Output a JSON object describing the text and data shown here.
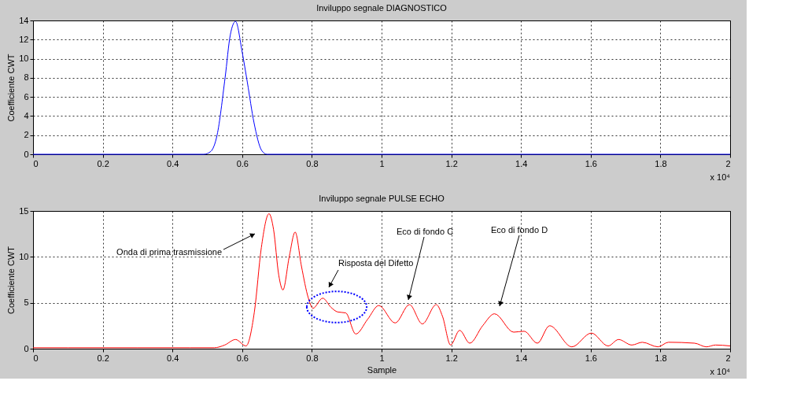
{
  "chart_data": [
    {
      "type": "line",
      "title": "Inviluppo segnale DIAGNOSTICO",
      "ylabel": "Coefficiente CWT",
      "xlim": [
        0,
        2
      ],
      "xticks": [
        0,
        0.2,
        0.4,
        0.6,
        0.8,
        1,
        1.2,
        1.4,
        1.6,
        1.8,
        2
      ],
      "ylim": [
        0,
        14
      ],
      "yticks": [
        0,
        2,
        4,
        6,
        8,
        10,
        12,
        14
      ],
      "grid": true,
      "series": [
        {
          "color": "#0000ff",
          "x": [
            0,
            0.49,
            0.51,
            0.528,
            0.551,
            0.566,
            0.581,
            0.6,
            0.615,
            0.634,
            0.656,
            0.671,
            2
          ],
          "values": [
            0,
            0,
            0.3,
            2,
            8.0,
            12.5,
            13.9,
            10.7,
            7.5,
            3.3,
            0.4,
            0,
            0
          ]
        }
      ],
      "annotations": [
        "x 10⁴"
      ]
    },
    {
      "type": "line",
      "title": "Inviluppo segnale PULSE ECHO",
      "xlabel": "Sample",
      "ylabel": "Coefficiente CWT",
      "xlim": [
        0,
        2
      ],
      "xticks": [
        0,
        0.2,
        0.4,
        0.6,
        0.8,
        1,
        1.2,
        1.4,
        1.6,
        1.8,
        2
      ],
      "ylim": [
        0,
        15
      ],
      "yticks": [
        0,
        5,
        10,
        15
      ],
      "grid": true,
      "series": [
        {
          "color": "#ff0000",
          "x": [
            0,
            0.1,
            0.3,
            0.45,
            0.52,
            0.55,
            0.581,
            0.611,
            0.635,
            0.655,
            0.677,
            0.69,
            0.705,
            0.717,
            0.735,
            0.752,
            0.77,
            0.79,
            0.803,
            0.831,
            0.855,
            0.874,
            0.897,
            0.926,
            0.96,
            0.992,
            1.039,
            1.08,
            1.117,
            1.157,
            1.175,
            1.198,
            1.224,
            1.253,
            1.29,
            1.324,
            1.379,
            1.409,
            1.447,
            1.482,
            1.546,
            1.602,
            1.65,
            1.68,
            1.718,
            1.748,
            1.793,
            1.823,
            1.898,
            1.932,
            1.958,
            2
          ],
          "values": [
            0.1,
            0.1,
            0.1,
            0.1,
            0.1,
            0.4,
            1,
            0.3,
            4,
            11,
            14.7,
            13,
            8,
            6.4,
            10,
            12.7,
            9,
            5.5,
            4.4,
            5.5,
            4.5,
            4.0,
            3.9,
            1.6,
            3.2,
            4.7,
            2.8,
            4.8,
            2.7,
            4.8,
            3.5,
            0.4,
            2.0,
            0.6,
            2.5,
            3.8,
            1.8,
            1.9,
            0.6,
            2.5,
            0.2,
            1.7,
            0.3,
            1,
            0.4,
            0.7,
            0.2,
            0.7,
            0.6,
            0.2,
            0.4,
            0.3
          ]
        }
      ],
      "annotations": [
        "Onda di prima trasmissione",
        "Risposta del Difetto",
        "Eco di fondo C",
        "Eco di fondo D",
        "x 10⁴"
      ]
    }
  ]
}
